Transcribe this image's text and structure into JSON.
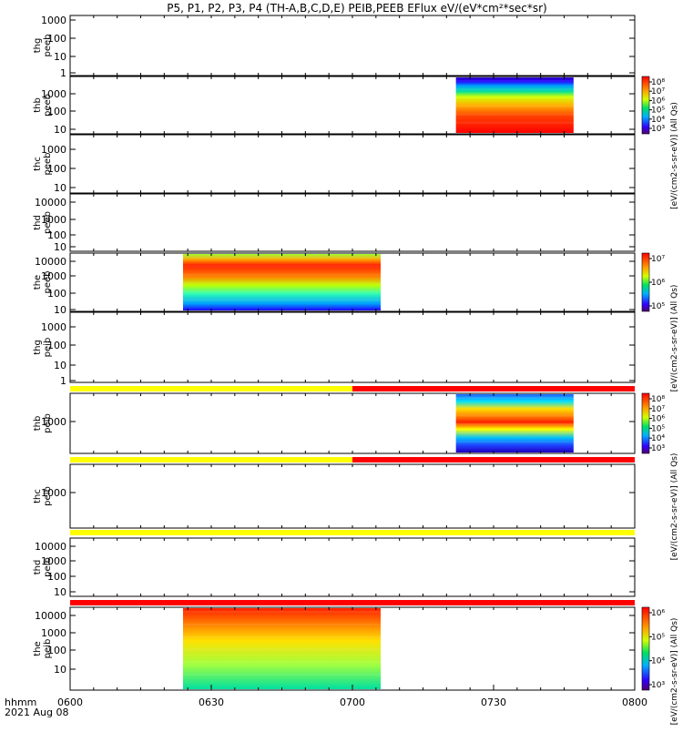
{
  "title": "P5, P1, P2, P3, P4 (TH-A,B,C,D,E) PEIB,PEEB EFlux eV/(eV*cm²*sec*sr)",
  "colorbar_label_all": "[eV/(cm2-s-sr-eV)] (All Qs)",
  "time_label": "hhmm",
  "date_label": "2021 Aug 08",
  "colors": {
    "flag_yellow": "#ffff00",
    "flag_red": "#ff0000"
  },
  "chart_data": [
    {
      "type": "heatmap",
      "probe": "thg",
      "species": "peeb",
      "ylabel": "thg\npeeb",
      "yticks": [
        "1000",
        "100",
        "10",
        "1"
      ],
      "has_data": false
    },
    {
      "type": "heatmap",
      "probe": "thb",
      "species": "peeb",
      "ylabel": "thb\npeeb",
      "yticks": [
        "1000",
        "100",
        "10"
      ],
      "has_data": true,
      "time_range": [
        "0722",
        "0747"
      ],
      "colorbar_ticks": [
        "10⁸",
        "10⁷",
        "10⁶",
        "10⁵",
        "10⁴",
        "10³"
      ]
    },
    {
      "type": "heatmap",
      "probe": "thc",
      "species": "peeb",
      "ylabel": "thc\npeeb",
      "yticks": [
        "1000",
        "100",
        "10"
      ],
      "has_data": false
    },
    {
      "type": "heatmap",
      "probe": "thd",
      "species": "peeb",
      "ylabel": "thd\npeeb",
      "yticks": [
        "10000",
        "1000",
        "100",
        "10"
      ],
      "has_data": false
    },
    {
      "type": "heatmap",
      "probe": "the",
      "species": "peeb",
      "ylabel": "the\npeeb",
      "yticks": [
        "10000",
        "1000",
        "100",
        "10"
      ],
      "has_data": true,
      "time_range": [
        "0624",
        "0706"
      ],
      "colorbar_ticks": [
        "10⁷",
        "10⁶",
        "10⁵"
      ]
    },
    {
      "type": "heatmap",
      "probe": "thg",
      "species": "peib",
      "ylabel": "thg\npeib",
      "yticks": [
        "1000",
        "100",
        "10",
        "1"
      ],
      "has_data": false
    },
    {
      "type": "heatmap",
      "probe": "thb",
      "species": "peib",
      "ylabel": "thb\npeib",
      "yticks": [
        "1000"
      ],
      "has_data": true,
      "time_range": [
        "0722",
        "0747"
      ],
      "colorbar_ticks": [
        "10⁸",
        "10⁷",
        "10⁶",
        "10⁵",
        "10⁴",
        "10³"
      ]
    },
    {
      "type": "heatmap",
      "probe": "thc",
      "species": "peib",
      "ylabel": "thc\npeib",
      "yticks": [
        "1000"
      ],
      "has_data": false
    },
    {
      "type": "heatmap",
      "probe": "thd",
      "species": "peib",
      "ylabel": "thd\npeib",
      "yticks": [
        "10000",
        "1000",
        "100",
        "10"
      ],
      "has_data": false
    },
    {
      "type": "heatmap",
      "probe": "the",
      "species": "peib",
      "ylabel": "the\npeib",
      "yticks": [
        "10000",
        "1000",
        "100",
        "10"
      ],
      "has_data": true,
      "time_range": [
        "0624",
        "0706"
      ],
      "colorbar_ticks": [
        "10⁶",
        "10⁵",
        "10⁴",
        "10³"
      ]
    }
  ],
  "x_axis": {
    "ticks": [
      "0600",
      "0630",
      "0700",
      "0730",
      "0800"
    ],
    "range": [
      "0600",
      "0800"
    ]
  },
  "flag_bars": [
    {
      "segments": [
        {
          "start": "0600",
          "end": "0700",
          "color": "yellow"
        },
        {
          "start": "0700",
          "end": "0800",
          "color": "red"
        }
      ]
    },
    {
      "segments": [
        {
          "start": "0600",
          "end": "0700",
          "color": "yellow"
        },
        {
          "start": "0700",
          "end": "0800",
          "color": "red"
        }
      ]
    },
    {
      "segments": [
        {
          "start": "0600",
          "end": "0800",
          "color": "yellow"
        }
      ]
    },
    {
      "segments": [
        {
          "start": "0600",
          "end": "0800",
          "color": "red"
        }
      ]
    }
  ]
}
